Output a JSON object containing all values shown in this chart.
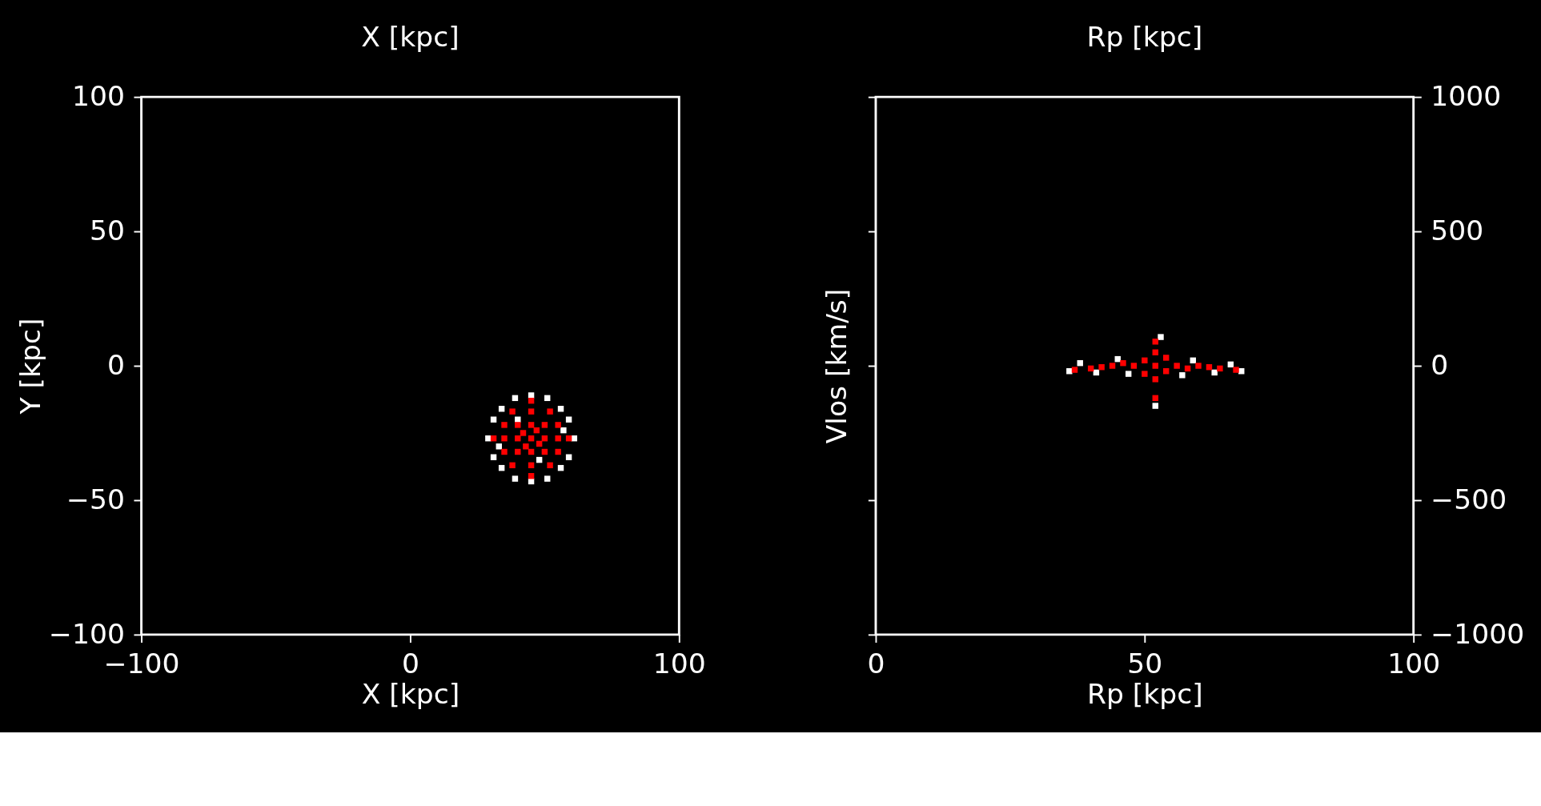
{
  "chart_data": [
    {
      "type": "scatter",
      "annotations": [
        "X [kpc]"
      ],
      "xlabel": "X [kpc]",
      "ylabel": "Y [kpc]",
      "xlim": [
        -100,
        100
      ],
      "ylim": [
        -100,
        100
      ],
      "xticks": [
        -100,
        0,
        100
      ],
      "yticks": [
        -100,
        -50,
        0,
        50,
        100
      ],
      "grid": false,
      "marker": "square",
      "series": [
        {
          "color": "#ffffff",
          "x": [
            61,
            29,
            45,
            45,
            56,
            34,
            56,
            34,
            59,
            31,
            59,
            31,
            51,
            39,
            51,
            39,
            33,
            57,
            48,
            40
          ],
          "values": [
            -27,
            -27,
            -11,
            -43,
            -16,
            -16,
            -38,
            -38,
            -20,
            -20,
            -34,
            -34,
            -12,
            -12,
            -42,
            -42,
            -30,
            -24,
            -35,
            -20
          ]
        },
        {
          "color": "#ff0000",
          "x": [
            45,
            40,
            50,
            35,
            55,
            45,
            45,
            45,
            45,
            40,
            50,
            40,
            50,
            35,
            55,
            35,
            55,
            38,
            52,
            38,
            52,
            31,
            59,
            45,
            45,
            42,
            48,
            47,
            43
          ],
          "values": [
            -27,
            -27,
            -27,
            -27,
            -27,
            -22,
            -32,
            -17,
            -37,
            -22,
            -22,
            -32,
            -32,
            -22,
            -22,
            -32,
            -32,
            -17,
            -17,
            -37,
            -37,
            -27,
            -27,
            -13,
            -41,
            -25,
            -29,
            -24,
            -30
          ]
        }
      ]
    },
    {
      "type": "scatter",
      "annotations": [
        "Rp [kpc]"
      ],
      "xlabel": "Rp [kpc]",
      "ylabel": "Vlos [km/s]",
      "xlim": [
        0,
        100
      ],
      "ylim": [
        -1000,
        1000
      ],
      "xticks": [
        0,
        50,
        100
      ],
      "yticks": [
        -1000,
        -500,
        0,
        500,
        1000
      ],
      "grid": false,
      "marker": "square",
      "series": [
        {
          "color": "#ffffff",
          "x": [
            36,
            38,
            68,
            66,
            53,
            52,
            45,
            59,
            47,
            57,
            41,
            63
          ],
          "values": [
            -20,
            10,
            -20,
            5,
            107,
            -149,
            25,
            20,
            -30,
            -35,
            -25,
            -25
          ]
        },
        {
          "color": "#ff0000",
          "x": [
            52,
            52,
            52,
            52,
            52,
            50,
            54,
            48,
            56,
            44,
            60,
            40,
            64,
            37,
            67,
            46,
            58,
            50,
            54,
            42,
            62
          ],
          "values": [
            0,
            50,
            -50,
            90,
            -120,
            20,
            -20,
            0,
            0,
            0,
            0,
            -10,
            -10,
            -15,
            -15,
            10,
            -10,
            -30,
            30,
            -5,
            -5
          ]
        }
      ]
    }
  ]
}
